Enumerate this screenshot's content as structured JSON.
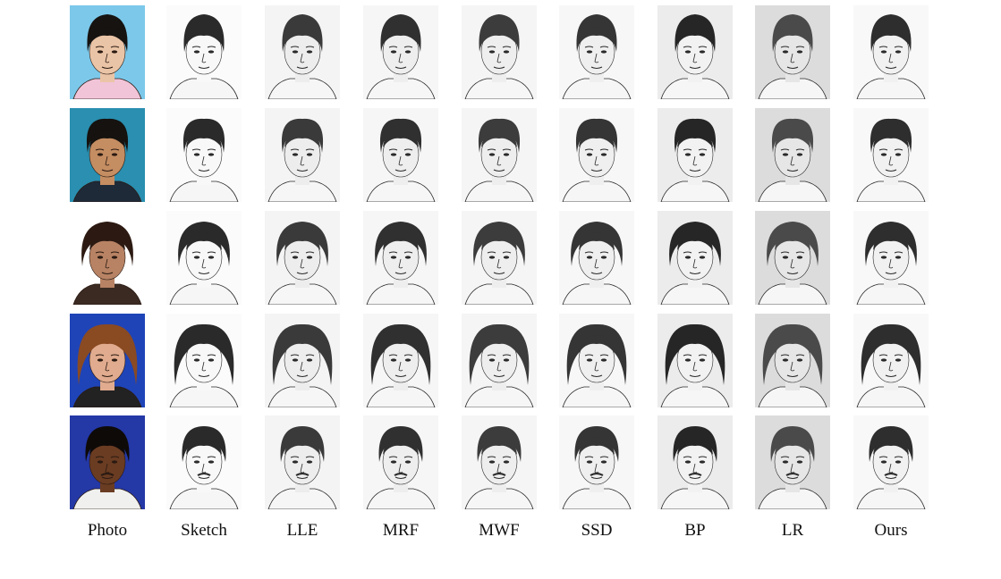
{
  "figure": {
    "column_labels": [
      "Photo",
      "Sketch",
      "LLE",
      "MRF",
      "MWF",
      "SSD",
      "BP",
      "LR",
      "Ours"
    ],
    "rows": [
      {
        "photo_bg": "#7cc8ea",
        "skin": "#eac4a6",
        "hair": "#161311",
        "shirt": "#f2c4d8"
      },
      {
        "photo_bg": "#2a8fb0",
        "skin": "#c48d62",
        "hair": "#15120f",
        "shirt": "#1e2a38"
      },
      {
        "photo_bg": "#ffffff",
        "skin": "#b88364",
        "hair": "#2c1a12",
        "shirt": "#3a2a22"
      },
      {
        "photo_bg": "#1e44b8",
        "skin": "#e0ab8e",
        "hair": "#8a4a22",
        "shirt": "#222222"
      },
      {
        "photo_bg": "#2438a6",
        "skin": "#6a3c22",
        "hair": "#0e0a08",
        "shirt": "#f0f0ee"
      }
    ],
    "sketch_tones": {
      "Sketch": {
        "bg": "#fbfbfb",
        "hair": "#2a2a2a",
        "skin": "#f8f8f8"
      },
      "LLE": {
        "bg": "#f4f4f4",
        "hair": "#3a3a3a",
        "skin": "#ededed"
      },
      "MRF": {
        "bg": "#f6f6f6",
        "hair": "#303030",
        "skin": "#eeeeee"
      },
      "MWF": {
        "bg": "#f5f5f5",
        "hair": "#3c3c3c",
        "skin": "#eeeeee"
      },
      "SSD": {
        "bg": "#f7f7f7",
        "hair": "#353535",
        "skin": "#efefef"
      },
      "BP": {
        "bg": "#ececec",
        "hair": "#262626",
        "skin": "#f2f2f2"
      },
      "LR": {
        "bg": "#dcdcdc",
        "hair": "#4a4a4a",
        "skin": "#e6e6e6"
      },
      "Ours": {
        "bg": "#f8f8f8",
        "hair": "#2e2e2e",
        "skin": "#f1f1f1"
      }
    }
  }
}
